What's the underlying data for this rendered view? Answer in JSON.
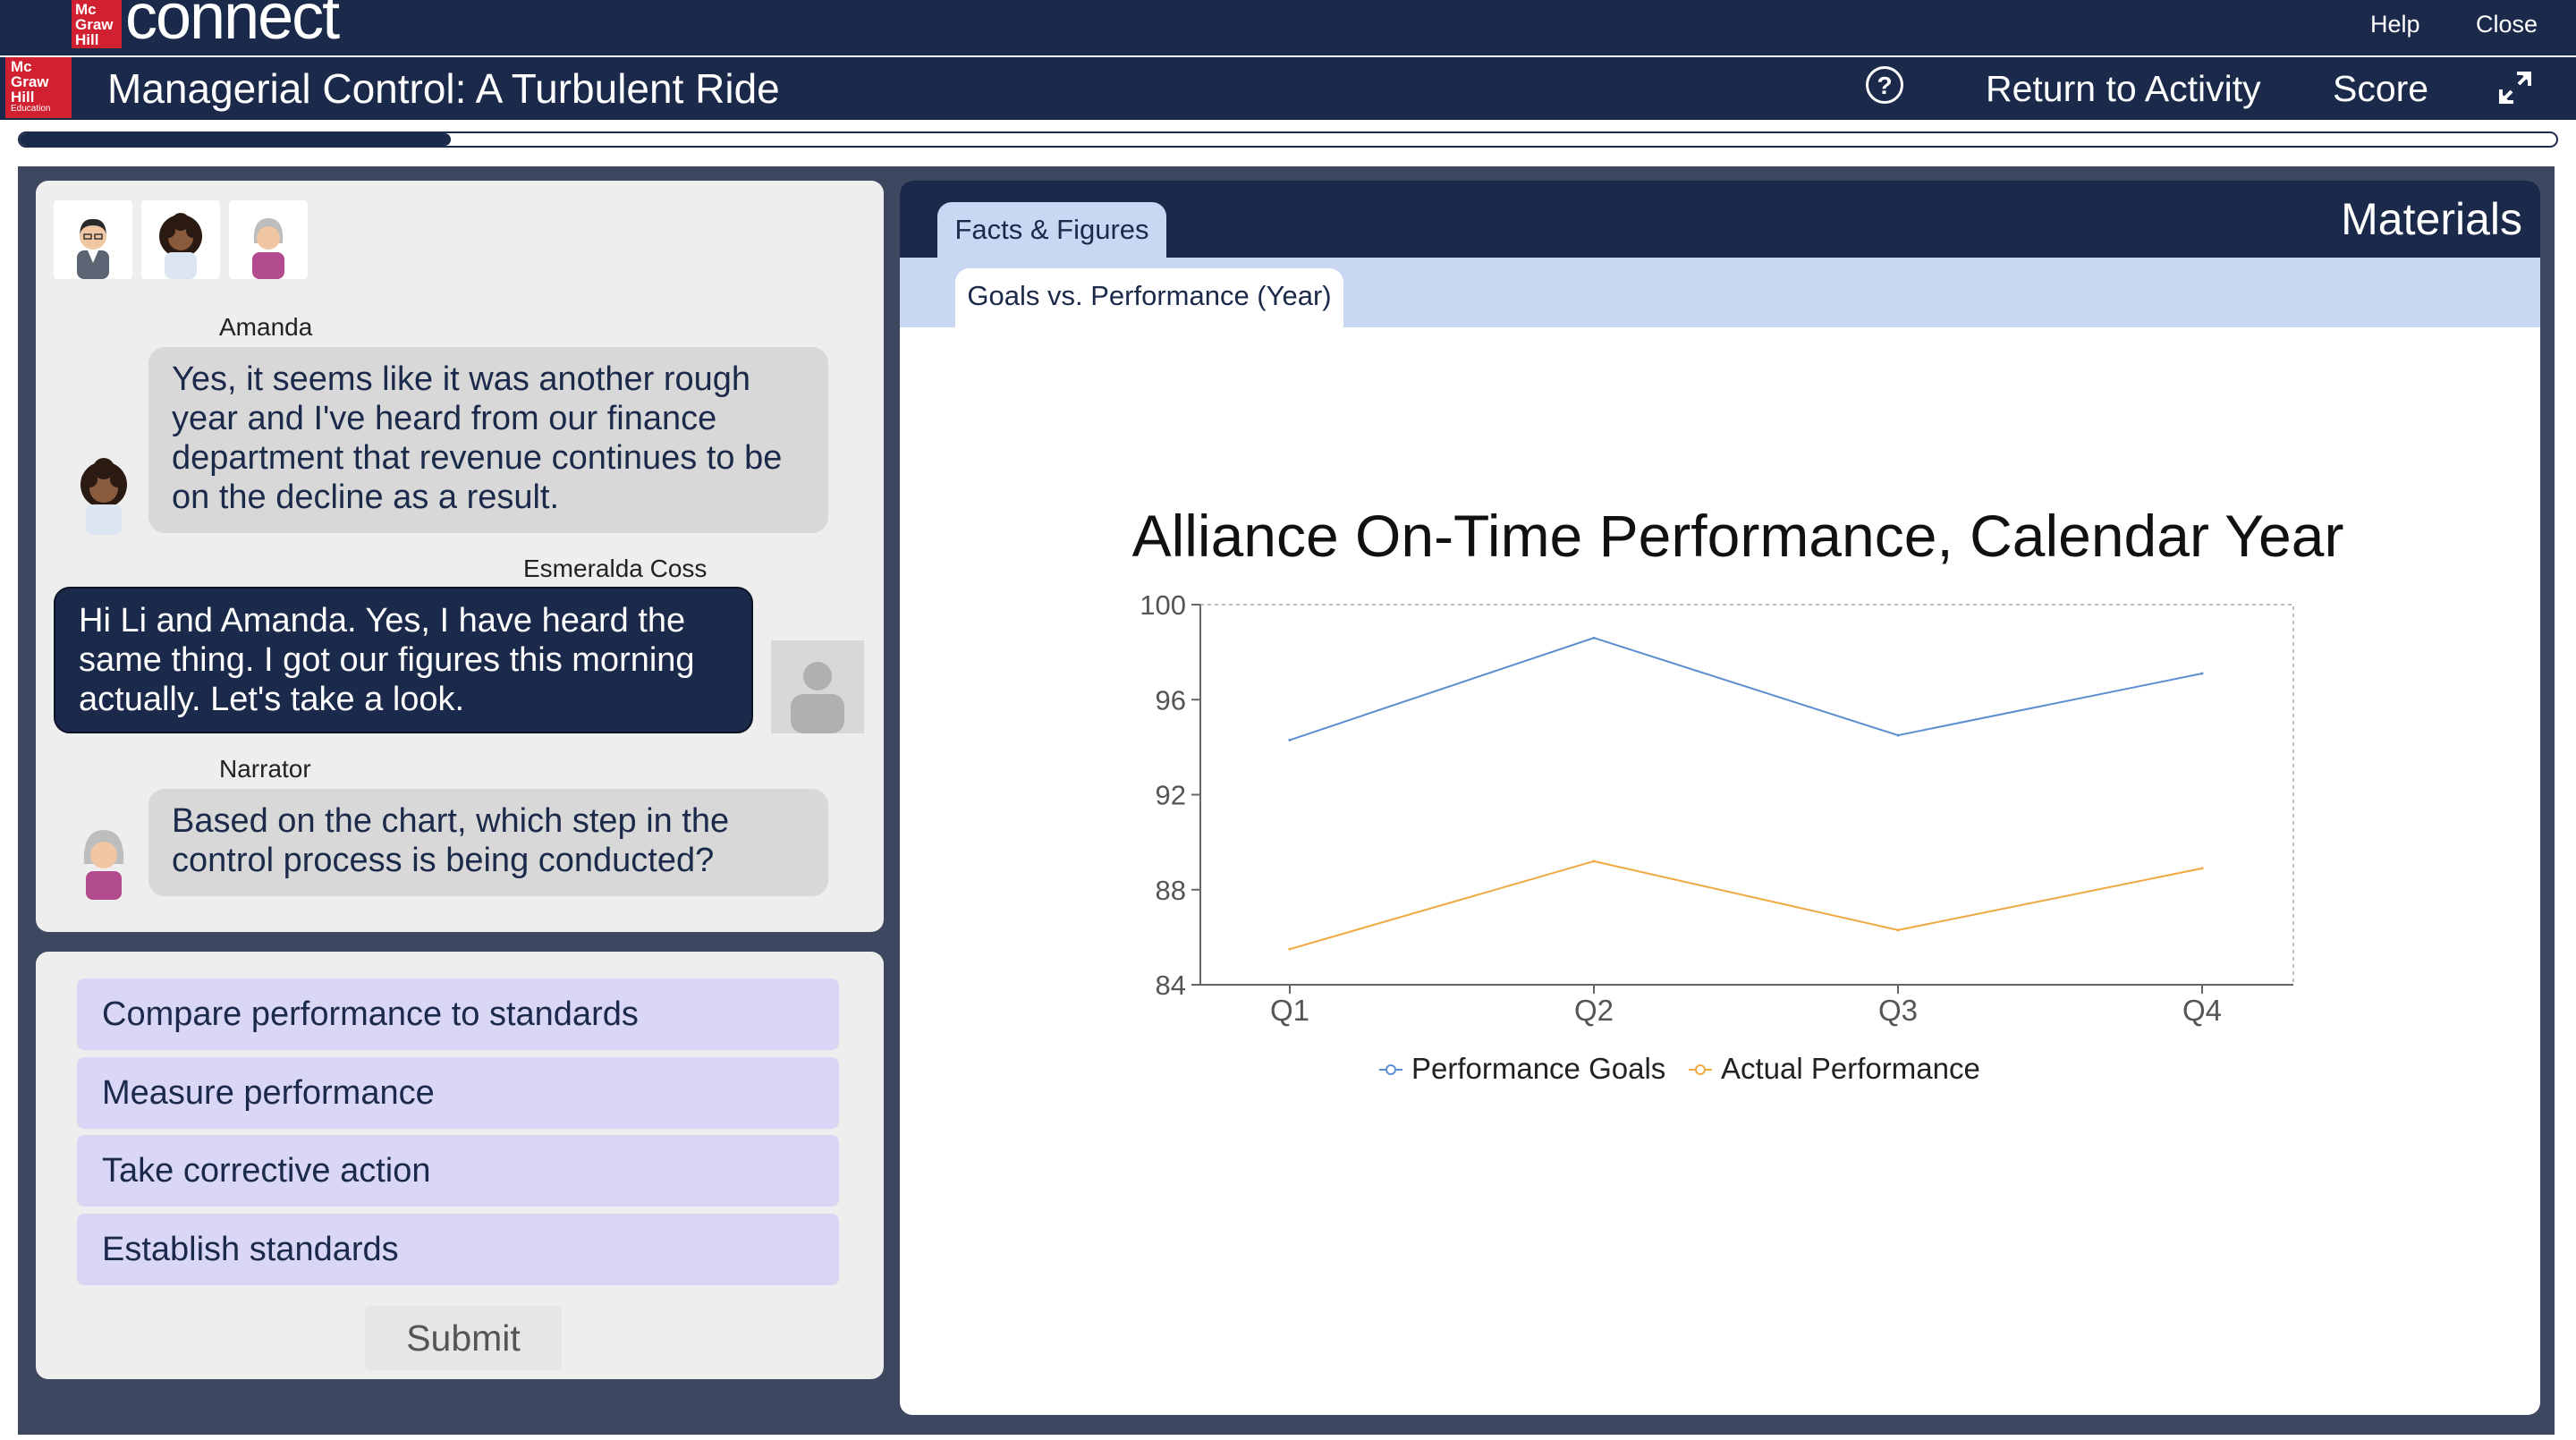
{
  "app": {
    "brand": "connect",
    "logo_lines": [
      "Mc",
      "Graw",
      "Hill"
    ],
    "logo_title_lines": [
      "Mc",
      "Graw",
      "Hill",
      "Education"
    ],
    "help_label": "Help",
    "close_label": "Close"
  },
  "header": {
    "title": "Managerial Control: A Turbulent Ride",
    "help_icon": "?",
    "return_label": "Return to Activity",
    "score_label": "Score"
  },
  "progress": {
    "fraction": 0.17
  },
  "chat": {
    "messages": [
      {
        "speaker": "Amanda",
        "text": "Yes, it seems like it was another rough year and I've heard from our finance department that revenue continues to be on the decline as a result.",
        "side": "left"
      },
      {
        "speaker": "Esmeralda Coss",
        "text": "Hi Li and Amanda. Yes, I have heard the same thing. I got our figures this morning actually. Let's take a look.",
        "side": "right"
      },
      {
        "speaker": "Narrator",
        "text": "Based on the chart, which step in the control process is being conducted?",
        "side": "left"
      }
    ]
  },
  "answers": {
    "options": [
      "Compare performance to standards",
      "Measure performance",
      "Take corrective action",
      "Establish standards"
    ],
    "submit_label": "Submit"
  },
  "materials": {
    "title": "Materials",
    "tab": "Facts & Figures",
    "subtab": "Goals vs. Performance (Year)"
  },
  "chart_data": {
    "type": "line",
    "title": "Alliance On-Time Performance, Calendar Year",
    "categories": [
      "Q1",
      "Q2",
      "Q3",
      "Q4"
    ],
    "series": [
      {
        "name": "Performance Goals",
        "values": [
          94.3,
          98.6,
          94.5,
          97.1
        ],
        "color": "#5b8fd1"
      },
      {
        "name": "Actual Performance",
        "values": [
          85.5,
          89.2,
          86.3,
          88.9
        ],
        "color": "#f0a840"
      }
    ],
    "yticks": [
      84,
      88,
      92,
      96,
      100
    ],
    "ylim": [
      84,
      100
    ],
    "grid": false,
    "legend": "bottom"
  }
}
